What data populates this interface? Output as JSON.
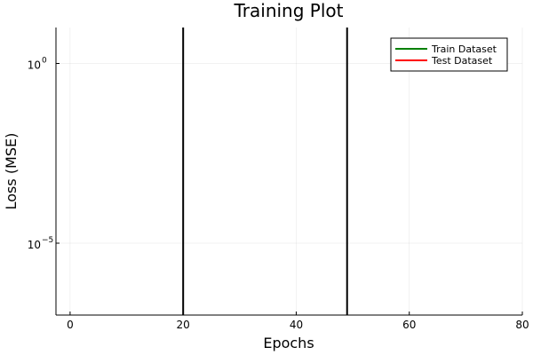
{
  "chart_data": {
    "type": "line",
    "title": "Training Plot",
    "xlabel": "Epochs",
    "ylabel": "Loss (MSE)",
    "xlim": [
      -2.5,
      80
    ],
    "ylim_log10": [
      -7,
      1
    ],
    "yscale": "log",
    "xticks": [
      0,
      20,
      40,
      60,
      80
    ],
    "yticks": [
      {
        "exponent": 0,
        "base": "10",
        "exp_label": "0"
      },
      {
        "exponent": -5,
        "base": "10",
        "exp_label": "−5"
      }
    ],
    "grid": true,
    "legend_position": "top-right",
    "series": [
      {
        "name": "Train Dataset",
        "color": "#008000",
        "values": []
      },
      {
        "name": "Test Dataset",
        "color": "#ff0000",
        "values": []
      }
    ],
    "vlines": [
      {
        "x": 20,
        "color": "#000000"
      },
      {
        "x": 49,
        "color": "#000000"
      }
    ]
  }
}
